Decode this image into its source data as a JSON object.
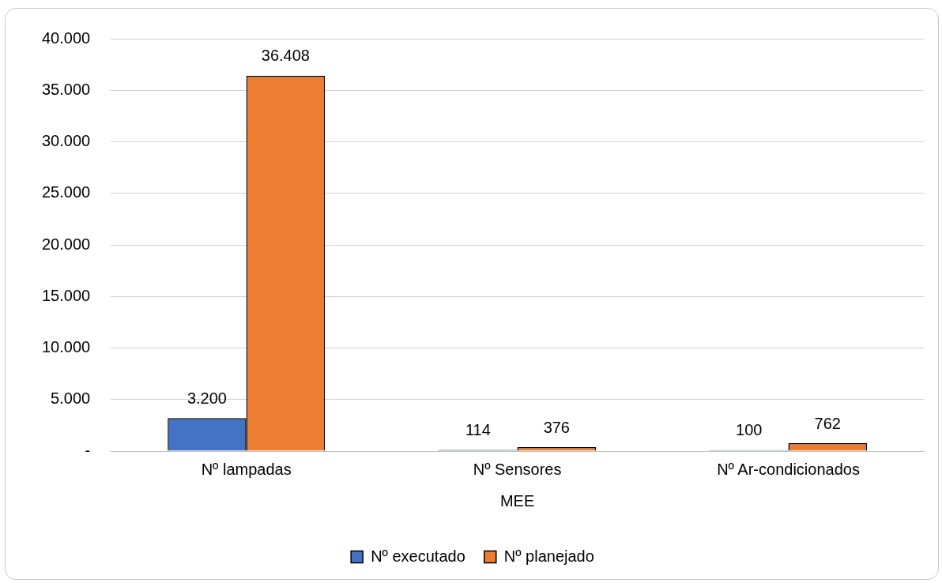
{
  "chart_data": {
    "type": "bar",
    "xlabel": "MEE",
    "categories": [
      "Nº lampadas",
      "Nº Sensores",
      "Nº Ar-condicionados"
    ],
    "series": [
      {
        "name": "Nº executado",
        "color": "#4472c4",
        "values": [
          3200,
          114,
          100
        ],
        "value_labels": [
          "3.200",
          "114",
          "100"
        ]
      },
      {
        "name": "Nº planejado",
        "color": "#ed7d31",
        "values": [
          36408,
          376,
          762
        ],
        "value_labels": [
          "36.408",
          "376",
          "762"
        ]
      }
    ],
    "ylim": [
      0,
      40000
    ],
    "yticks": [
      {
        "value": 0,
        "label": "-"
      },
      {
        "value": 5000,
        "label": "5.000"
      },
      {
        "value": 10000,
        "label": "10.000"
      },
      {
        "value": 15000,
        "label": "15.000"
      },
      {
        "value": 20000,
        "label": "20.000"
      },
      {
        "value": 25000,
        "label": "25.000"
      },
      {
        "value": 30000,
        "label": "30.000"
      },
      {
        "value": 35000,
        "label": "35.000"
      },
      {
        "value": 40000,
        "label": "40.000"
      }
    ],
    "grid": "y",
    "legend": "bottom"
  }
}
